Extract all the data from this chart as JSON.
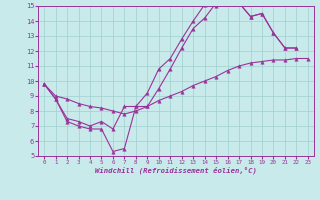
{
  "xlabel": "Windchill (Refroidissement éolien,°C)",
  "xlim": [
    -0.5,
    23.5
  ],
  "ylim": [
    5,
    15
  ],
  "xticks": [
    0,
    1,
    2,
    3,
    4,
    5,
    6,
    7,
    8,
    9,
    10,
    11,
    12,
    13,
    14,
    15,
    16,
    17,
    18,
    19,
    20,
    21,
    22,
    23
  ],
  "yticks": [
    5,
    6,
    7,
    8,
    9,
    10,
    11,
    12,
    13,
    14,
    15
  ],
  "bg_color": "#c8eaea",
  "line_color": "#993399",
  "grid_color": "#a0d0d0",
  "line1_x": [
    0,
    1,
    2,
    3,
    4,
    5,
    6,
    7,
    8,
    9,
    10,
    11,
    12,
    13,
    14,
    15,
    16,
    17,
    18,
    19,
    20,
    21,
    22
  ],
  "line1_y": [
    9.8,
    8.8,
    7.3,
    7.0,
    6.8,
    6.8,
    5.3,
    5.5,
    8.3,
    8.3,
    9.5,
    10.8,
    12.2,
    13.5,
    14.2,
    15.2,
    15.2,
    15.2,
    14.3,
    14.5,
    13.2,
    12.2,
    12.2
  ],
  "line2_x": [
    0,
    1,
    2,
    3,
    4,
    5,
    6,
    7,
    8,
    9,
    10,
    11,
    12,
    13,
    14,
    15,
    16,
    17,
    18,
    19,
    20,
    21,
    22
  ],
  "line2_y": [
    9.8,
    8.8,
    7.5,
    7.3,
    7.0,
    7.3,
    6.8,
    8.3,
    8.3,
    9.2,
    10.8,
    11.5,
    12.8,
    14.0,
    15.1,
    15.0,
    15.2,
    15.2,
    14.3,
    14.5,
    13.2,
    12.2,
    12.2
  ],
  "line3_x": [
    0,
    1,
    2,
    3,
    4,
    5,
    6,
    7,
    8,
    9,
    10,
    11,
    12,
    13,
    14,
    15,
    16,
    17,
    18,
    19,
    20,
    21,
    22,
    23
  ],
  "line3_y": [
    9.8,
    9.0,
    8.8,
    8.5,
    8.3,
    8.2,
    8.0,
    7.8,
    8.0,
    8.3,
    8.7,
    9.0,
    9.3,
    9.7,
    10.0,
    10.3,
    10.7,
    11.0,
    11.2,
    11.3,
    11.4,
    11.4,
    11.5,
    11.5
  ]
}
